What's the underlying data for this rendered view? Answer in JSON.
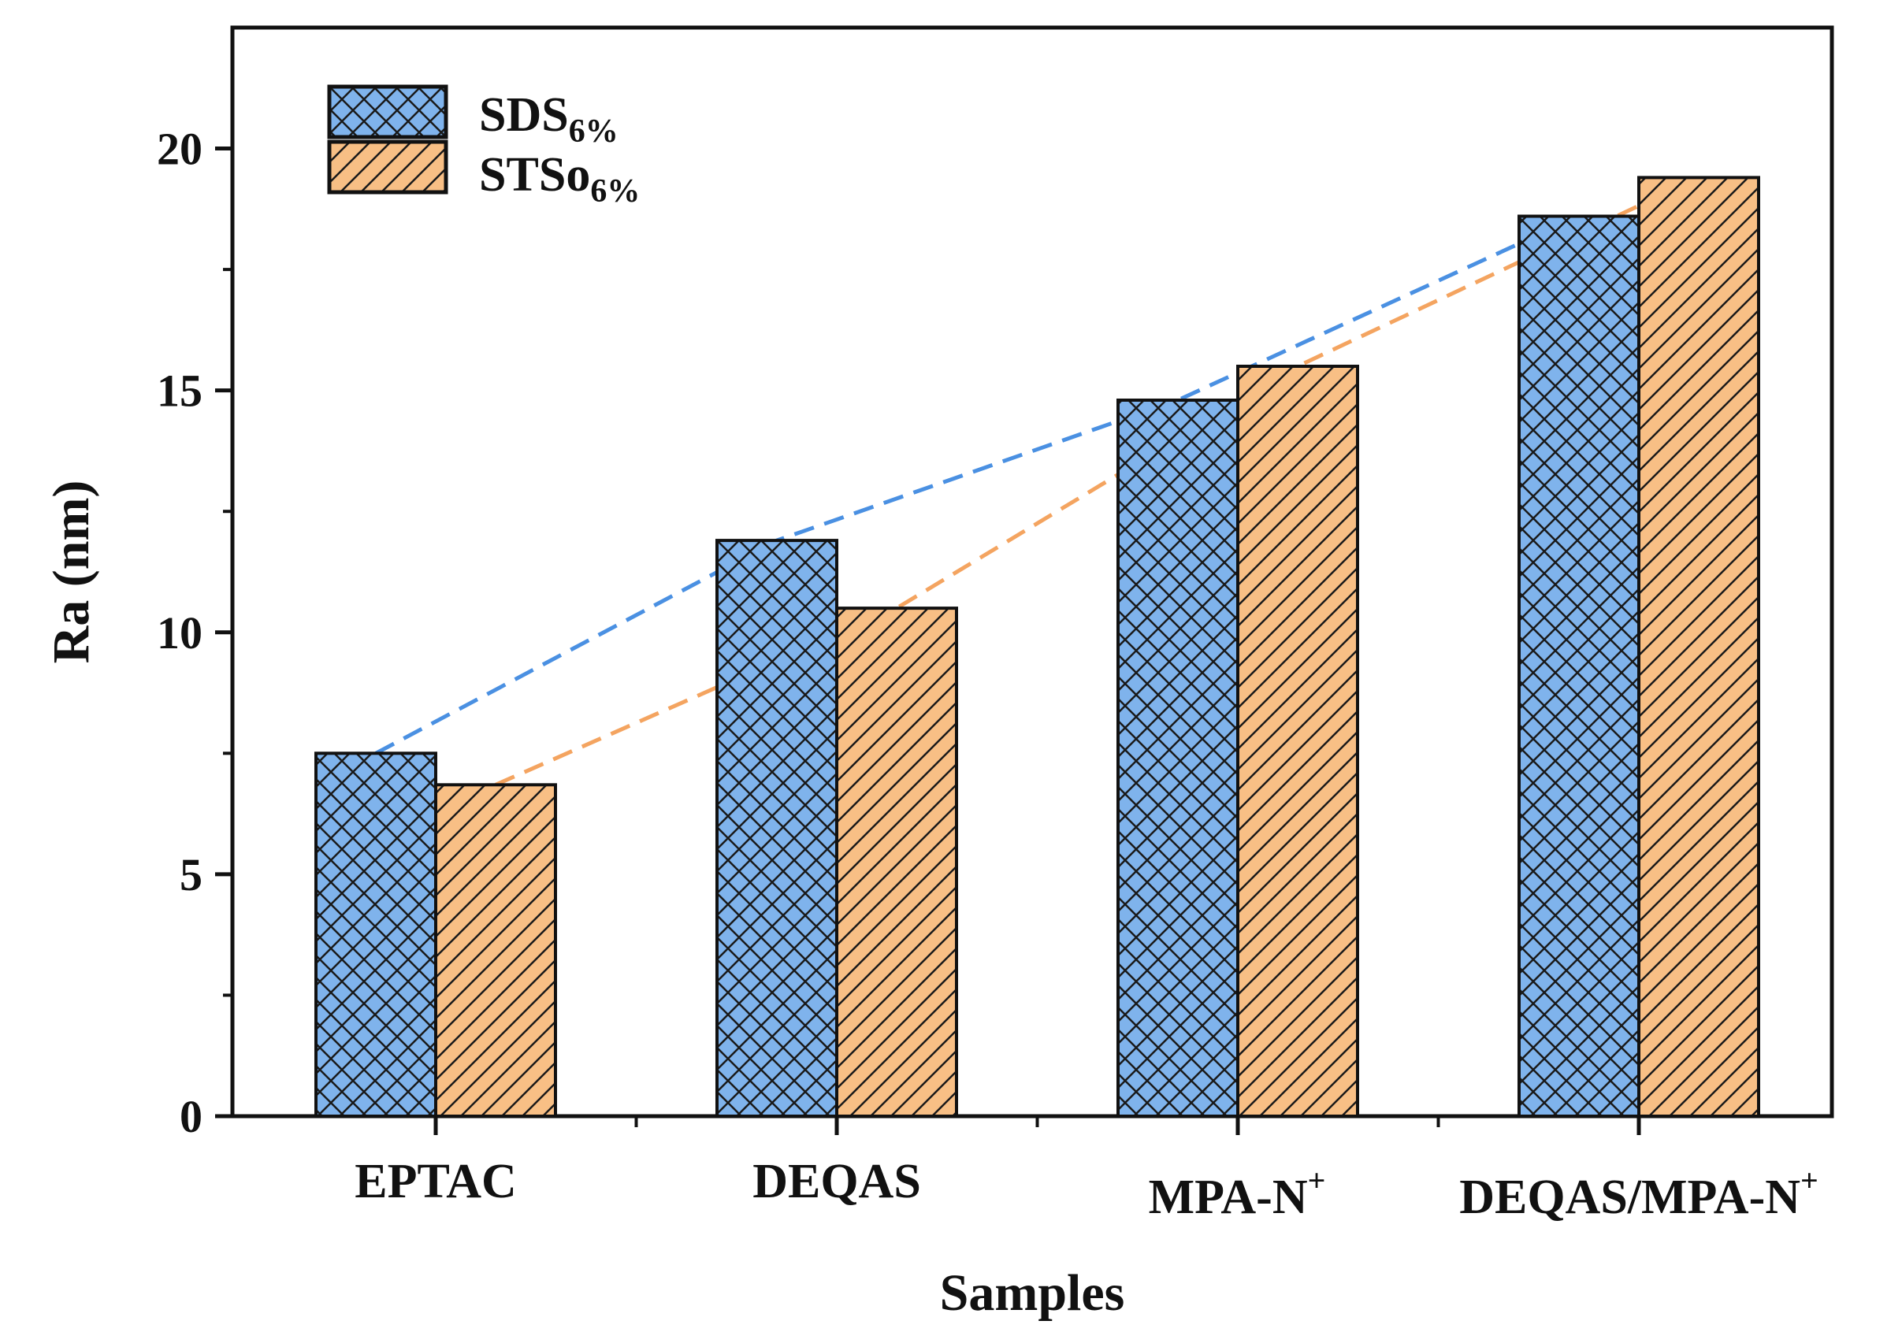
{
  "chart_data": {
    "type": "bar",
    "title": "",
    "xlabel": "Samples",
    "ylabel": "Ra (nm)",
    "ylim": [
      0,
      22.5
    ],
    "yticks": [
      0,
      5,
      10,
      15,
      20
    ],
    "ytick_labels": [
      "0",
      "5",
      "10",
      "15",
      "20"
    ],
    "grid": false,
    "legend_position": "top-left",
    "categories": [
      {
        "base": "EPTAC",
        "sup": ""
      },
      {
        "base": "DEQAS",
        "sup": ""
      },
      {
        "base": "MPA-N",
        "sup": "+"
      },
      {
        "base": "DEQAS/MPA-N",
        "sup": "+"
      }
    ],
    "series": [
      {
        "name": "SDS6%",
        "name_base": "SDS",
        "name_sub": "6%",
        "values": [
          7.5,
          11.9,
          14.8,
          18.6
        ],
        "color": "#7fb3ec",
        "hatch": "crosshatch",
        "trend_color": "#4a90e2"
      },
      {
        "name": "STSo6%",
        "name_base": "STSo",
        "name_sub": "6%",
        "values": [
          6.85,
          10.5,
          15.5,
          19.4
        ],
        "color": "#f8bf85",
        "hatch": "diagonal",
        "trend_color": "#f4a460"
      }
    ]
  }
}
